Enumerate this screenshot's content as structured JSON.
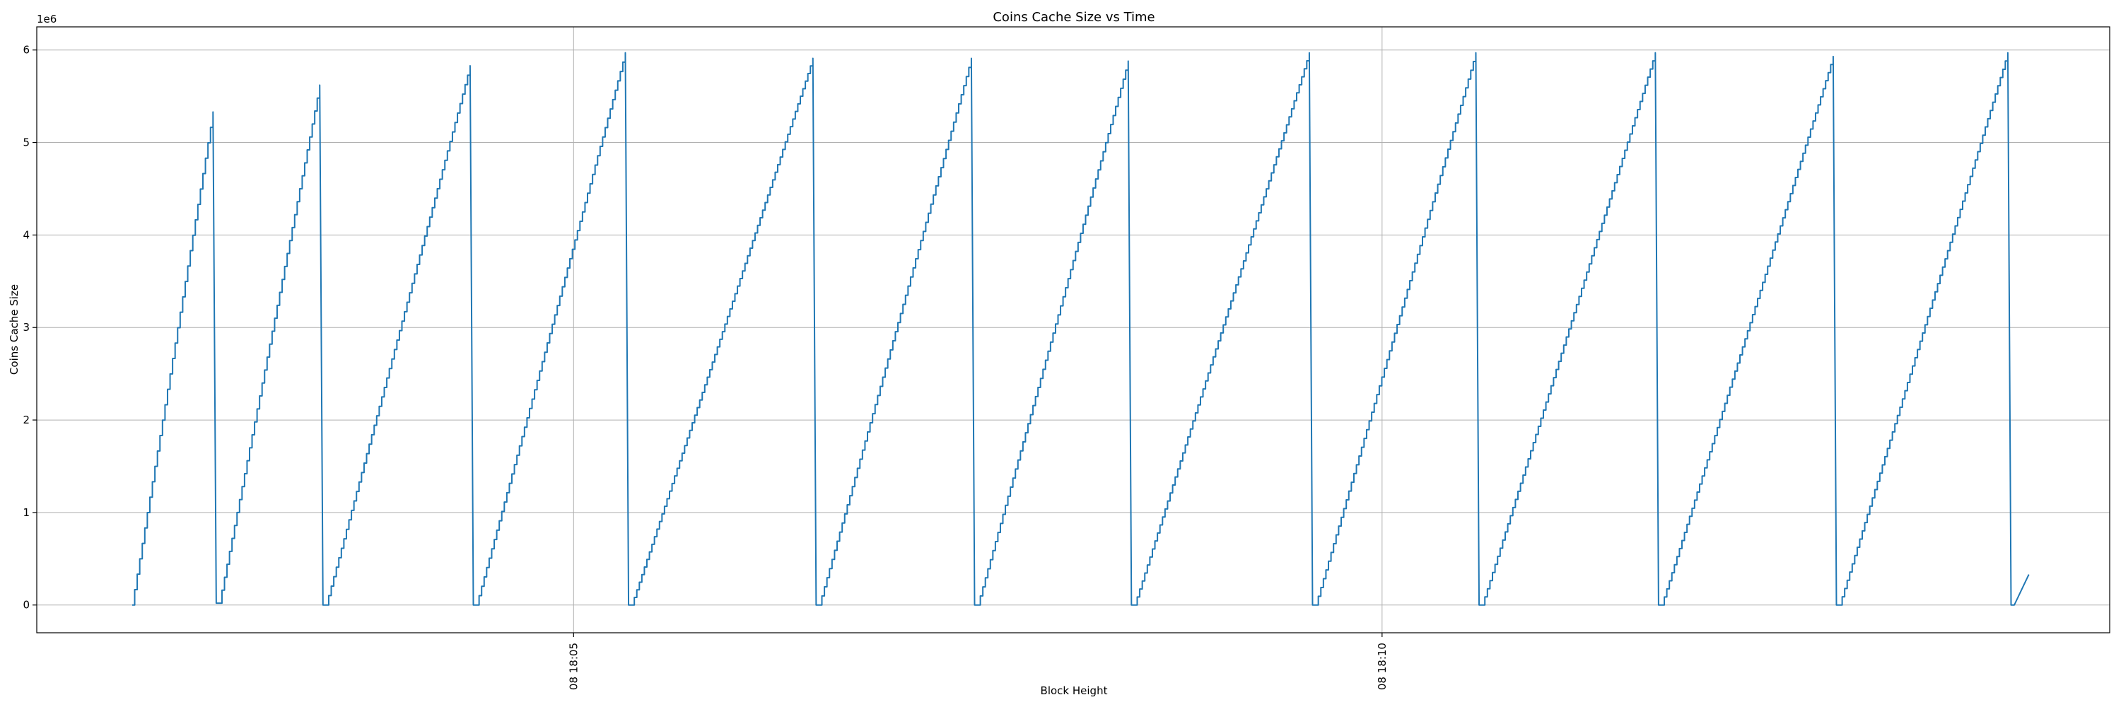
{
  "chart_data": {
    "type": "line",
    "title": "Coins Cache Size vs Time",
    "xlabel": "Block Height",
    "ylabel": "Coins Cache Size",
    "y_offset_label": "1e6",
    "x_unit": "minutes",
    "x_ticks": [
      {
        "value": 5,
        "label": "08 18:05"
      },
      {
        "value": 10,
        "label": "08 18:10"
      }
    ],
    "y_ticks": [
      {
        "value": 0,
        "label": "0"
      },
      {
        "value": 1,
        "label": "1"
      },
      {
        "value": 2,
        "label": "2"
      },
      {
        "value": 3,
        "label": "3"
      },
      {
        "value": 4,
        "label": "4"
      },
      {
        "value": 5,
        "label": "5"
      },
      {
        "value": 6,
        "label": "6"
      }
    ],
    "xlim": [
      1.68,
      14.5
    ],
    "ylim": [
      -0.3,
      6.25
    ],
    "grid": true,
    "series_color": "#1f77b4",
    "series": [
      {
        "x": [
          2.27,
          2.77,
          2.79,
          2.81,
          3.43,
          3.45,
          3.47,
          4.36,
          4.38,
          4.4,
          5.32,
          5.34,
          5.36,
          6.48,
          6.5,
          6.52,
          7.46,
          7.48,
          7.5,
          8.43,
          8.45,
          8.47,
          9.55,
          9.57,
          9.59,
          10.58,
          10.6,
          10.62,
          11.69,
          11.71,
          11.73,
          12.79,
          12.81,
          12.83,
          13.87,
          13.89,
          13.91,
          14.0
        ],
        "y": [
          0.0,
          5.33,
          0.02,
          0.02,
          5.62,
          0.0,
          0.0,
          5.83,
          0.0,
          0.0,
          5.97,
          0.0,
          0.0,
          5.91,
          0.0,
          0.0,
          5.91,
          0.0,
          0.0,
          5.88,
          0.0,
          0.0,
          5.97,
          0.0,
          0.0,
          5.97,
          0.0,
          0.0,
          5.97,
          0.0,
          0.0,
          5.93,
          0.0,
          0.0,
          5.97,
          0.0,
          0.0,
          0.33
        ]
      }
    ]
  }
}
